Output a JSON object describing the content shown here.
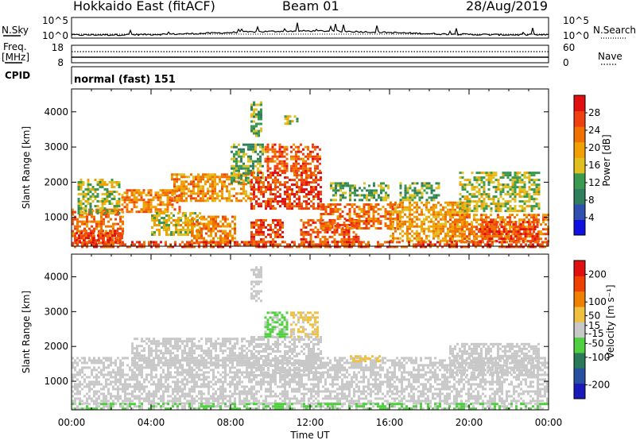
{
  "header": {
    "radar": "Hokkaido East (fitACF)",
    "beam": "Beam 01",
    "date": "28/Aug/2019"
  },
  "noise_panel": {
    "left_label": "N.Sky",
    "right_label": "N.Search",
    "ticks": [
      "10^5",
      "10^0"
    ]
  },
  "freq_panel": {
    "left_label_1": "Freq.",
    "left_label_2": "[MHz]",
    "left_ticks": [
      "18",
      "8"
    ],
    "right_label": "Nave",
    "right_ticks": [
      "60",
      "0"
    ]
  },
  "cpid_panel": {
    "label": "CPID",
    "mode": "normal (fast) 151"
  },
  "x_axis": {
    "ticks": [
      "00:00",
      "04:00",
      "08:00",
      "12:00",
      "16:00",
      "20:00",
      "00:00"
    ],
    "label": "Time UT"
  },
  "chart_data": [
    {
      "type": "heatmap",
      "title": "",
      "xlabel": "Time UT",
      "ylabel": "Slant Range [km]",
      "x_range_hours": [
        0,
        24
      ],
      "ylim": [
        180,
        4650
      ],
      "yticks": [
        1000,
        2000,
        3000,
        4000
      ],
      "colorbar": {
        "label": "Power [dB]",
        "ticks": [
          "4",
          "8",
          "12",
          "16",
          "20",
          "24",
          "28"
        ],
        "range": [
          0,
          32
        ],
        "colors": [
          "#1010e0",
          "#3050b0",
          "#2f7f5f",
          "#3a9a50",
          "#e0c020",
          "#f0a000",
          "#f07000",
          "#f04010",
          "#e01010"
        ]
      },
      "regions": [
        {
          "t0": 0.0,
          "t1": 2.6,
          "r0": 300,
          "r1": 1250,
          "v": 24
        },
        {
          "t0": 0.2,
          "t1": 2.5,
          "r0": 300,
          "r1": 650,
          "v": 28
        },
        {
          "t0": 0.3,
          "t1": 2.4,
          "r0": 1100,
          "r1": 2100,
          "v": 15
        },
        {
          "t0": 2.5,
          "t1": 5.5,
          "r0": 1150,
          "r1": 1800,
          "v": 22
        },
        {
          "t0": 4.0,
          "t1": 6.5,
          "r0": 500,
          "r1": 1150,
          "v": 17
        },
        {
          "t0": 5.0,
          "t1": 9.0,
          "r0": 1450,
          "r1": 2250,
          "v": 21
        },
        {
          "t0": 6.0,
          "t1": 8.2,
          "r0": 300,
          "r1": 1050,
          "v": 22
        },
        {
          "t0": 8.0,
          "t1": 9.6,
          "r0": 2000,
          "r1": 3100,
          "v": 13
        },
        {
          "t0": 9.0,
          "t1": 12.5,
          "r0": 1250,
          "r1": 2300,
          "v": 27
        },
        {
          "t0": 9.7,
          "t1": 10.9,
          "r0": 2300,
          "r1": 3100,
          "v": 25
        },
        {
          "t0": 11.0,
          "t1": 12.5,
          "r0": 2300,
          "r1": 3100,
          "v": 25
        },
        {
          "t0": 9.0,
          "t1": 10.6,
          "r0": 300,
          "r1": 950,
          "v": 27
        },
        {
          "t0": 11.5,
          "t1": 14.5,
          "r0": 300,
          "r1": 950,
          "v": 26
        },
        {
          "t0": 12.5,
          "t1": 16.5,
          "r0": 700,
          "r1": 1400,
          "v": 24
        },
        {
          "t0": 13.0,
          "t1": 16.0,
          "r0": 1500,
          "r1": 2000,
          "v": 13
        },
        {
          "t0": 16.0,
          "t1": 20.0,
          "r0": 350,
          "r1": 1450,
          "v": 20
        },
        {
          "t0": 16.5,
          "t1": 18.5,
          "r0": 1500,
          "r1": 2000,
          "v": 12
        },
        {
          "t0": 19.0,
          "t1": 24.0,
          "r0": 300,
          "r1": 1100,
          "v": 22
        },
        {
          "t0": 20.5,
          "t1": 23.5,
          "r0": 350,
          "r1": 900,
          "v": 27
        },
        {
          "t0": 19.5,
          "t1": 23.5,
          "r0": 1200,
          "r1": 2300,
          "v": 15
        },
        {
          "t0": 0.0,
          "t1": 24.0,
          "r0": 180,
          "r1": 330,
          "v": 26
        },
        {
          "t0": 9.0,
          "t1": 9.6,
          "r0": 3300,
          "r1": 4300,
          "v": 13
        },
        {
          "t0": 10.7,
          "t1": 11.4,
          "r0": 3650,
          "r1": 3900,
          "v": 15
        }
      ]
    },
    {
      "type": "heatmap",
      "title": "",
      "xlabel": "Time UT",
      "ylabel": "Slant Range [km]",
      "x_range_hours": [
        0,
        24
      ],
      "ylim": [
        180,
        4650
      ],
      "yticks": [
        1000,
        2000,
        3000,
        4000
      ],
      "colorbar": {
        "label": "Velocity [m s⁻¹]",
        "ticks": [
          "200",
          "100",
          "50",
          "15",
          "-15",
          "-50",
          "-100",
          "-200"
        ],
        "range": [
          -250,
          250
        ],
        "colors": [
          "#1a1ab8",
          "#2850a0",
          "#2a7a5a",
          "#50d040",
          "#c8c8c8",
          "#f0c040",
          "#f08000",
          "#f04000",
          "#e01010"
        ]
      },
      "regions": [
        {
          "t0": 0.0,
          "t1": 24.0,
          "r0": 400,
          "r1": 1700,
          "v": 0
        },
        {
          "t0": 3.0,
          "t1": 9.0,
          "r0": 1450,
          "r1": 2250,
          "v": 0
        },
        {
          "t0": 9.0,
          "t1": 12.5,
          "r0": 1200,
          "r1": 2300,
          "v": 0
        },
        {
          "t0": 9.7,
          "t1": 10.9,
          "r0": 2300,
          "r1": 3000,
          "v": -40
        },
        {
          "t0": 11.0,
          "t1": 12.4,
          "r0": 2300,
          "r1": 3000,
          "v": 40
        },
        {
          "t0": 0.0,
          "t1": 24.0,
          "r0": 180,
          "r1": 380,
          "v": -30
        },
        {
          "t0": 19.0,
          "t1": 23.5,
          "r0": 1200,
          "r1": 2100,
          "v": 0
        },
        {
          "t0": 9.0,
          "t1": 9.6,
          "r0": 3300,
          "r1": 4300,
          "v": 0
        },
        {
          "t0": 14.0,
          "t1": 15.5,
          "r0": 1550,
          "r1": 1750,
          "v": 40
        }
      ]
    }
  ]
}
